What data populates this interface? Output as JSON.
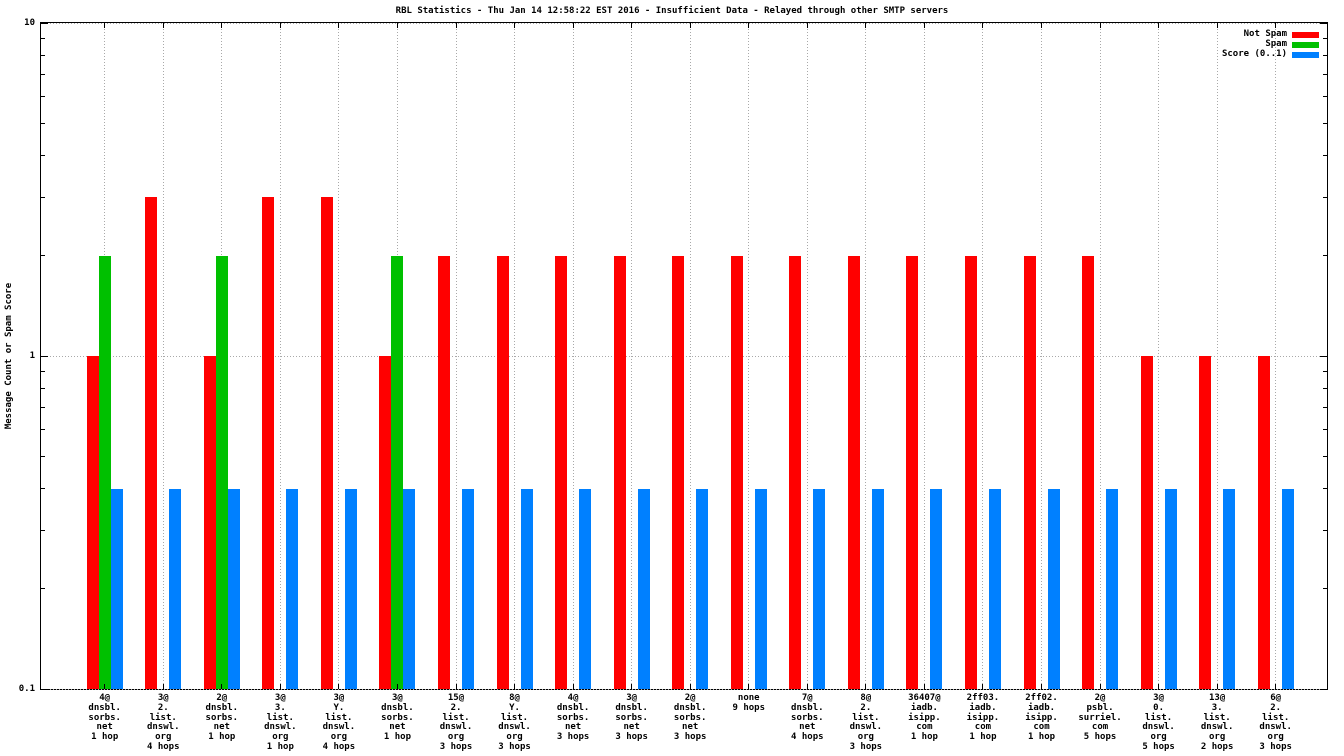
{
  "title": "RBL Statistics - Thu Jan 14 12:58:22 EST 2016 - Insufficient Data - Relayed through other SMTP servers",
  "colors": {
    "not_spam": "#ff0000",
    "spam": "#00c000",
    "score": "#0080ff",
    "grid": "#a9a9a9",
    "frame": "#000000",
    "background": "#ffffff"
  },
  "legend": {
    "position": "top-right",
    "items": [
      {
        "label": "Not Spam",
        "color": "#ff0000"
      },
      {
        "label": "Spam",
        "color": "#00c000"
      },
      {
        "label": "Score (0..1)",
        "color": "#0080ff"
      }
    ]
  },
  "chart_data": {
    "type": "bar",
    "title": "RBL Statistics - Thu Jan 14 12:58:22 EST 2016 - Insufficient Data - Relayed through other SMTP servers",
    "xlabel": "",
    "ylabel": "Message Count or Spam Score",
    "grid": "dotted",
    "legend_position": "top-right",
    "y_axis": {
      "scale": "log",
      "range": [
        0.1,
        10
      ],
      "ticks": [
        10,
        1,
        0.1
      ],
      "tick_labels": [
        "10",
        "1",
        "0.1"
      ],
      "minor_ticks": [
        0.2,
        0.3,
        0.4,
        0.5,
        0.6,
        0.7,
        0.8,
        0.9,
        2,
        3,
        4,
        5,
        6,
        7,
        8,
        9
      ]
    },
    "categories": [
      {
        "name": "4@dnsbl.sorbs.net",
        "hops": "1 hop",
        "lines": [
          "4@",
          "dnsbl.",
          "sorbs.",
          "net",
          "1 hop"
        ]
      },
      {
        "name": "3@2.list.dnswl.org",
        "hops": "4 hops",
        "lines": [
          "3@",
          "2.",
          "list.",
          "dnswl.",
          "org",
          "4 hops"
        ]
      },
      {
        "name": "2@dnsbl.sorbs.net",
        "hops": "1 hop",
        "lines": [
          "2@",
          "dnsbl.",
          "sorbs.",
          "net",
          "1 hop"
        ]
      },
      {
        "name": "3@3.list.dnswl.org",
        "hops": "1 hop",
        "lines": [
          "3@",
          "3.",
          "list.",
          "dnswl.",
          "org",
          "1 hop"
        ]
      },
      {
        "name": "3@Y.list.dnswl.org",
        "hops": "4 hops",
        "lines": [
          "3@",
          "Y.",
          "list.",
          "dnswl.",
          "org",
          "4 hops"
        ]
      },
      {
        "name": "3@dnsbl.sorbs.net",
        "hops": "1 hop",
        "lines": [
          "3@",
          "dnsbl.",
          "sorbs.",
          "net",
          "1 hop"
        ]
      },
      {
        "name": "15@2.list.dnswl.org",
        "hops": "3 hops",
        "lines": [
          "15@",
          "2.",
          "list.",
          "dnswl.",
          "org",
          "3 hops"
        ]
      },
      {
        "name": "8@Y.list.dnswl.org",
        "hops": "3 hops",
        "lines": [
          "8@",
          "Y.",
          "list.",
          "dnswl.",
          "org",
          "3 hops"
        ]
      },
      {
        "name": "4@dnsbl.sorbs.net",
        "hops": "3 hops",
        "lines": [
          "4@",
          "dnsbl.",
          "sorbs.",
          "net",
          "3 hops"
        ]
      },
      {
        "name": "3@dnsbl.sorbs.net",
        "hops": "3 hops",
        "lines": [
          "3@",
          "dnsbl.",
          "sorbs.",
          "net",
          "3 hops"
        ]
      },
      {
        "name": "2@dnsbl.sorbs.net",
        "hops": "3 hops",
        "lines": [
          "2@",
          "dnsbl.",
          "sorbs.",
          "net",
          "3 hops"
        ]
      },
      {
        "name": "none",
        "hops": "9 hops",
        "lines": [
          "none",
          "9 hops"
        ]
      },
      {
        "name": "7@dnsbl.sorbs.net",
        "hops": "4 hops",
        "lines": [
          "7@",
          "dnsbl.",
          "sorbs.",
          "net",
          "4 hops"
        ]
      },
      {
        "name": "8@2.list.dnswl.org",
        "hops": "3 hops",
        "lines": [
          "8@",
          "2.",
          "list.",
          "dnswl.",
          "org",
          "3 hops"
        ]
      },
      {
        "name": "36407@iadb.isipp.com",
        "hops": "1 hop",
        "lines": [
          "36407@",
          "iadb.",
          "isipp.",
          "com",
          "1 hop"
        ]
      },
      {
        "name": "2ff03.iadb.isipp.com",
        "hops": "1 hop",
        "lines": [
          "2ff03.",
          "iadb.",
          "isipp.",
          "com",
          "1 hop"
        ]
      },
      {
        "name": "2ff02.iadb.isipp.com",
        "hops": "1 hop",
        "lines": [
          "2ff02.",
          "iadb.",
          "isipp.",
          "com",
          "1 hop"
        ]
      },
      {
        "name": "2@psbl.surriel.com",
        "hops": "5 hops",
        "lines": [
          "2@",
          "psbl.",
          "surriel.",
          "com",
          "5 hops"
        ]
      },
      {
        "name": "3@0.list.dnswl.org",
        "hops": "5 hops",
        "lines": [
          "3@",
          "0.",
          "list.",
          "dnswl.",
          "org",
          "5 hops"
        ]
      },
      {
        "name": "13@3.list.dnswl.org",
        "hops": "2 hops",
        "lines": [
          "13@",
          "3.",
          "list.",
          "dnswl.",
          "org",
          "2 hops"
        ]
      },
      {
        "name": "6@2.list.dnswl.org",
        "hops": "3 hops",
        "lines": [
          "6@",
          "2.",
          "list.",
          "dnswl.",
          "org",
          "3 hops"
        ]
      }
    ],
    "series": [
      {
        "name": "Not Spam",
        "color": "#ff0000",
        "values": [
          1,
          3,
          1,
          3,
          3,
          1,
          2,
          2,
          2,
          2,
          2,
          2,
          2,
          2,
          2,
          2,
          2,
          2,
          1,
          1,
          1
        ]
      },
      {
        "name": "Spam",
        "color": "#00c000",
        "values": [
          2,
          0,
          2,
          0,
          0,
          2,
          0,
          0,
          0,
          0,
          0,
          0,
          0,
          0,
          0,
          0,
          0,
          0,
          0,
          0,
          0
        ]
      },
      {
        "name": "Score (0..1)",
        "color": "#0080ff",
        "values": [
          0.4,
          0.4,
          0.4,
          0.4,
          0.4,
          0.4,
          0.4,
          0.4,
          0.4,
          0.4,
          0.4,
          0.4,
          0.4,
          0.4,
          0.4,
          0.4,
          0.4,
          0.4,
          0.4,
          0.4,
          0.4
        ]
      }
    ]
  }
}
